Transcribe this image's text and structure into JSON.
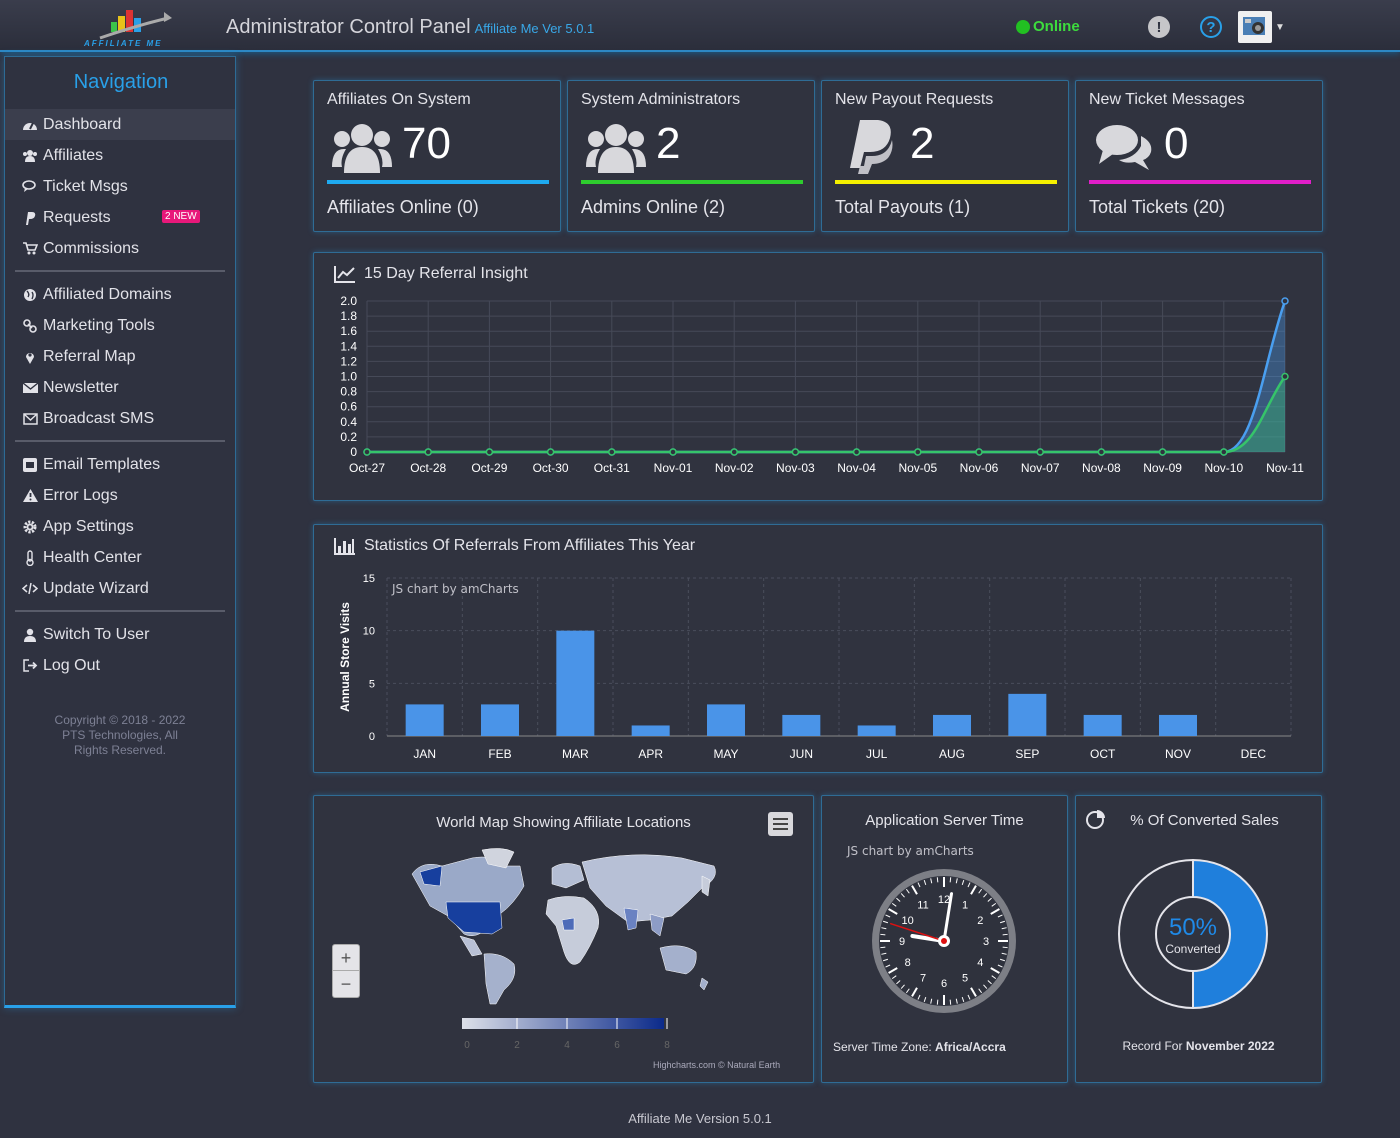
{
  "header": {
    "title": "Administrator Control Panel",
    "version_label": "Affiliate Me Ver 5.0.1",
    "status": "Online",
    "logo_text": "AFFILIATE ME"
  },
  "nav": {
    "title": "Navigation",
    "groups": [
      [
        {
          "label": "Dashboard",
          "icon": "dashboard-icon",
          "active": true
        },
        {
          "label": "Affiliates",
          "icon": "users-icon"
        },
        {
          "label": "Ticket Msgs",
          "icon": "comments-icon"
        },
        {
          "label": "Requests",
          "icon": "paypal-icon",
          "badge": "2 NEW"
        },
        {
          "label": "Commissions",
          "icon": "cart-icon"
        }
      ],
      [
        {
          "label": "Affiliated Domains",
          "icon": "globe-icon"
        },
        {
          "label": "Marketing Tools",
          "icon": "link-icon"
        },
        {
          "label": "Referral Map",
          "icon": "map-marker-icon"
        },
        {
          "label": "Newsletter",
          "icon": "envelope-icon"
        },
        {
          "label": "Broadcast SMS",
          "icon": "envelope-outline-icon"
        }
      ],
      [
        {
          "label": "Email Templates",
          "icon": "envelope-square-icon"
        },
        {
          "label": "Error Logs",
          "icon": "warning-icon"
        },
        {
          "label": "App Settings",
          "icon": "cog-icon"
        },
        {
          "label": "Health Center",
          "icon": "thermometer-icon"
        },
        {
          "label": "Update Wizard",
          "icon": "code-icon"
        }
      ],
      [
        {
          "label": "Switch To User",
          "icon": "user-icon"
        },
        {
          "label": "Log Out",
          "icon": "sign-out-icon"
        }
      ]
    ],
    "copyright": "Copyright © 2018 - 2022 PTS Technologies, All Rights Reserved."
  },
  "stats": [
    {
      "label": "Affiliates On System",
      "value": "70",
      "footer": "Affiliates Online (0)",
      "color": "#1eaaf0",
      "icon": "users-icon"
    },
    {
      "label": "System Administrators",
      "value": "2",
      "footer": "Admins Online (2)",
      "color": "#2ecc2e",
      "icon": "users-icon"
    },
    {
      "label": "New Payout Requests",
      "value": "2",
      "footer": "Total Payouts (1)",
      "color": "#f5f000",
      "icon": "paypal-icon"
    },
    {
      "label": "New Ticket Messages",
      "value": "0",
      "footer": "Total Tickets (20)",
      "color": "#e01ec8",
      "icon": "comments-icon"
    }
  ],
  "chart_data": [
    {
      "type": "area",
      "title": "15 Day Referral Insight",
      "x": [
        "Oct-27",
        "Oct-28",
        "Oct-29",
        "Oct-30",
        "Oct-31",
        "Nov-01",
        "Nov-02",
        "Nov-03",
        "Nov-04",
        "Nov-05",
        "Nov-06",
        "Nov-07",
        "Nov-08",
        "Nov-09",
        "Nov-10",
        "Nov-11"
      ],
      "ylim": [
        0,
        2.0
      ],
      "yticks": [
        "0",
        "0.2",
        "0.4",
        "0.6",
        "0.8",
        "1.0",
        "1.2",
        "1.4",
        "1.6",
        "1.8",
        "2.0"
      ],
      "series": [
        {
          "values": [
            0,
            0,
            0,
            0,
            0,
            0,
            0,
            0,
            0,
            0,
            0,
            0,
            0,
            0,
            0,
            2
          ],
          "color": "#4a9ff0"
        },
        {
          "values": [
            0,
            0,
            0,
            0,
            0,
            0,
            0,
            0,
            0,
            0,
            0,
            0,
            0,
            0,
            0,
            1
          ],
          "color": "#36c46a"
        }
      ],
      "grid": true
    },
    {
      "type": "bar",
      "title": "Statistics Of Referrals From Affiliates This Year",
      "ylabel": "Annual Store Visits",
      "watermark": "JS chart by amCharts",
      "categories": [
        "JAN",
        "FEB",
        "MAR",
        "APR",
        "MAY",
        "JUN",
        "JUL",
        "AUG",
        "SEP",
        "OCT",
        "NOV",
        "DEC"
      ],
      "values": [
        3,
        3,
        10,
        1,
        3,
        2,
        1,
        2,
        4,
        2,
        2,
        0
      ],
      "ylim": [
        0,
        15
      ],
      "yticks": [
        "0",
        "5",
        "10",
        "15"
      ],
      "color": "#4a94e8",
      "grid": true
    },
    {
      "type": "pie",
      "title": "% Of Converted Sales",
      "center_value": "50%",
      "center_label": "Converted",
      "footer_prefix": "Record For",
      "footer_value": "November 2022",
      "slices": [
        {
          "label": "Converted",
          "value": 50,
          "color": "#1f7fdc"
        },
        {
          "label": "Remaining",
          "value": 50,
          "color": "#30333f"
        }
      ]
    }
  ],
  "map": {
    "title": "World Map Showing Affiliate Locations",
    "legend_ticks": [
      "0",
      "2",
      "4",
      "6",
      "8"
    ],
    "credit": "Highcharts.com © Natural Earth",
    "zoom_in": "+",
    "zoom_out": "−"
  },
  "clock": {
    "title": "Application Server Time",
    "watermark": "JS chart by amCharts",
    "numbers": [
      "12",
      "1",
      "2",
      "3",
      "4",
      "5",
      "6",
      "7",
      "8",
      "9",
      "10",
      "11"
    ],
    "hour": 9.3,
    "minute": 1.5,
    "second": 48,
    "tz_prefix": "Server Time Zone:",
    "tz_value": "Africa/Accra"
  },
  "footer": "Affiliate Me Version 5.0.1"
}
